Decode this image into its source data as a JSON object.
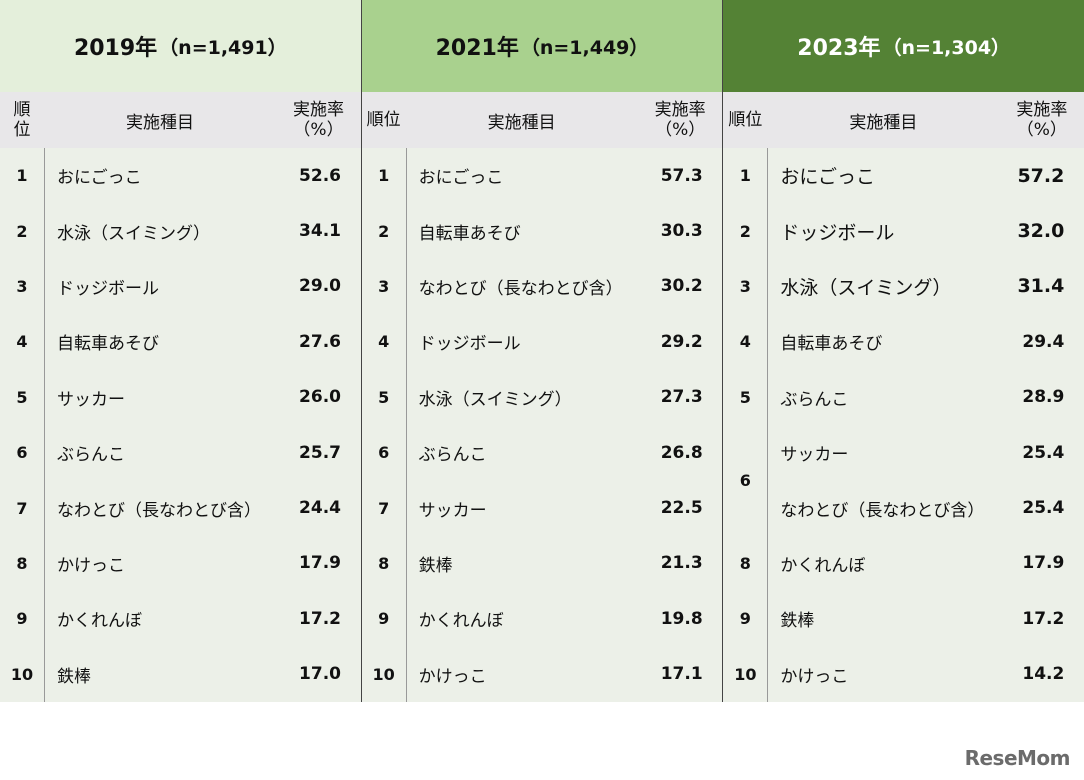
{
  "chart_data": {
    "type": "table",
    "columns": [
      "順位",
      "実施種目",
      "実施率（%）"
    ],
    "panels": [
      {
        "year_label": "2019年",
        "n_label": "（n=1,491）",
        "rows": [
          {
            "rank": "1",
            "item": "おにごっこ",
            "rate": "52.6"
          },
          {
            "rank": "2",
            "item": "水泳（スイミング）",
            "rate": "34.1"
          },
          {
            "rank": "3",
            "item": "ドッジボール",
            "rate": "29.0"
          },
          {
            "rank": "4",
            "item": "自転車あそび",
            "rate": "27.6"
          },
          {
            "rank": "5",
            "item": "サッカー",
            "rate": "26.0"
          },
          {
            "rank": "6",
            "item": "ぶらんこ",
            "rate": "25.7"
          },
          {
            "rank": "7",
            "item": "なわとび（長なわとび含）",
            "rate": "24.4"
          },
          {
            "rank": "8",
            "item": "かけっこ",
            "rate": "17.9"
          },
          {
            "rank": "9",
            "item": "かくれんぼ",
            "rate": "17.2"
          },
          {
            "rank": "10",
            "item": "鉄棒",
            "rate": "17.0"
          }
        ]
      },
      {
        "year_label": "2021年",
        "n_label": "（n=1,449）",
        "rows": [
          {
            "rank": "1",
            "item": "おにごっこ",
            "rate": "57.3"
          },
          {
            "rank": "2",
            "item": "自転車あそび",
            "rate": "30.3"
          },
          {
            "rank": "3",
            "item": "なわとび（長なわとび含）",
            "rate": "30.2"
          },
          {
            "rank": "4",
            "item": "ドッジボール",
            "rate": "29.2"
          },
          {
            "rank": "5",
            "item": "水泳（スイミング）",
            "rate": "27.3"
          },
          {
            "rank": "6",
            "item": "ぶらんこ",
            "rate": "26.8"
          },
          {
            "rank": "7",
            "item": "サッカー",
            "rate": "22.5"
          },
          {
            "rank": "8",
            "item": "鉄棒",
            "rate": "21.3"
          },
          {
            "rank": "9",
            "item": "かくれんぼ",
            "rate": "19.8"
          },
          {
            "rank": "10",
            "item": "かけっこ",
            "rate": "17.1"
          }
        ]
      },
      {
        "year_label": "2023年",
        "n_label": "（n=1,304）",
        "rows": [
          {
            "rank": "1",
            "item": "おにごっこ",
            "rate": "57.2"
          },
          {
            "rank": "2",
            "item": "ドッジボール",
            "rate": "32.0"
          },
          {
            "rank": "3",
            "item": "水泳（スイミング）",
            "rate": "31.4"
          },
          {
            "rank": "4",
            "item": "自転車あそび",
            "rate": "29.4"
          },
          {
            "rank": "5",
            "item": "ぶらんこ",
            "rate": "28.9"
          },
          {
            "rank": "6",
            "item": "サッカー",
            "rate": "25.4"
          },
          {
            "rank": "6",
            "item": "なわとび（長なわとび含）",
            "rate": "25.4"
          },
          {
            "rank": "8",
            "item": "かくれんぼ",
            "rate": "17.9"
          },
          {
            "rank": "9",
            "item": "鉄棒",
            "rate": "17.2"
          },
          {
            "rank": "10",
            "item": "かけっこ",
            "rate": "14.2"
          }
        ]
      }
    ]
  },
  "header_labels": {
    "rank_2019": "順\n位",
    "rank": "順位",
    "item": "実施種目",
    "rate_line1": "実施率",
    "rate_line2": "（%）"
  },
  "colors": {
    "panel_2019_header": "#e4efdb",
    "panel_2021_header": "#a9d18e",
    "panel_2023_header": "#548235",
    "column_header": "#e8e7e9",
    "body": "#ecf0e8"
  },
  "logo": "ReseMom"
}
